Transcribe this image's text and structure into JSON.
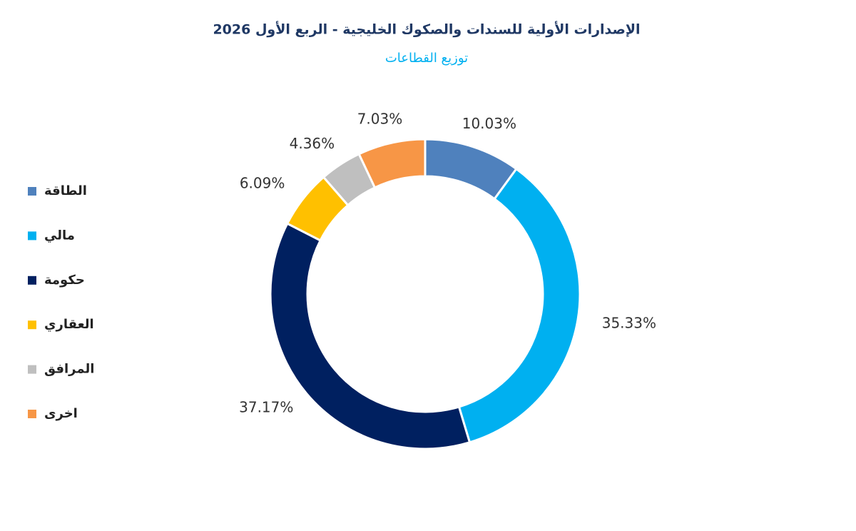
{
  "chart_data": {
    "type": "donut",
    "title": "الإصدارات الأولية للسندات والصكوك الخليجية - الربع الأول 2026",
    "subtitle": "توزيع القطاعات",
    "categories": [
      "الطاقة",
      "مالي",
      "حكومة",
      "العقاري",
      "المرافق",
      "اخرى"
    ],
    "values": [
      10.03,
      35.33,
      37.17,
      6.09,
      4.36,
      7.03
    ],
    "value_labels": [
      "10.03%",
      "35.33%",
      "37.17%",
      "6.09%",
      "4.36%",
      "7.03%"
    ],
    "colors": [
      "#4f81bd",
      "#00b0f0",
      "#002060",
      "#ffc000",
      "#bfbfbf",
      "#f79646"
    ],
    "legend": "left"
  }
}
